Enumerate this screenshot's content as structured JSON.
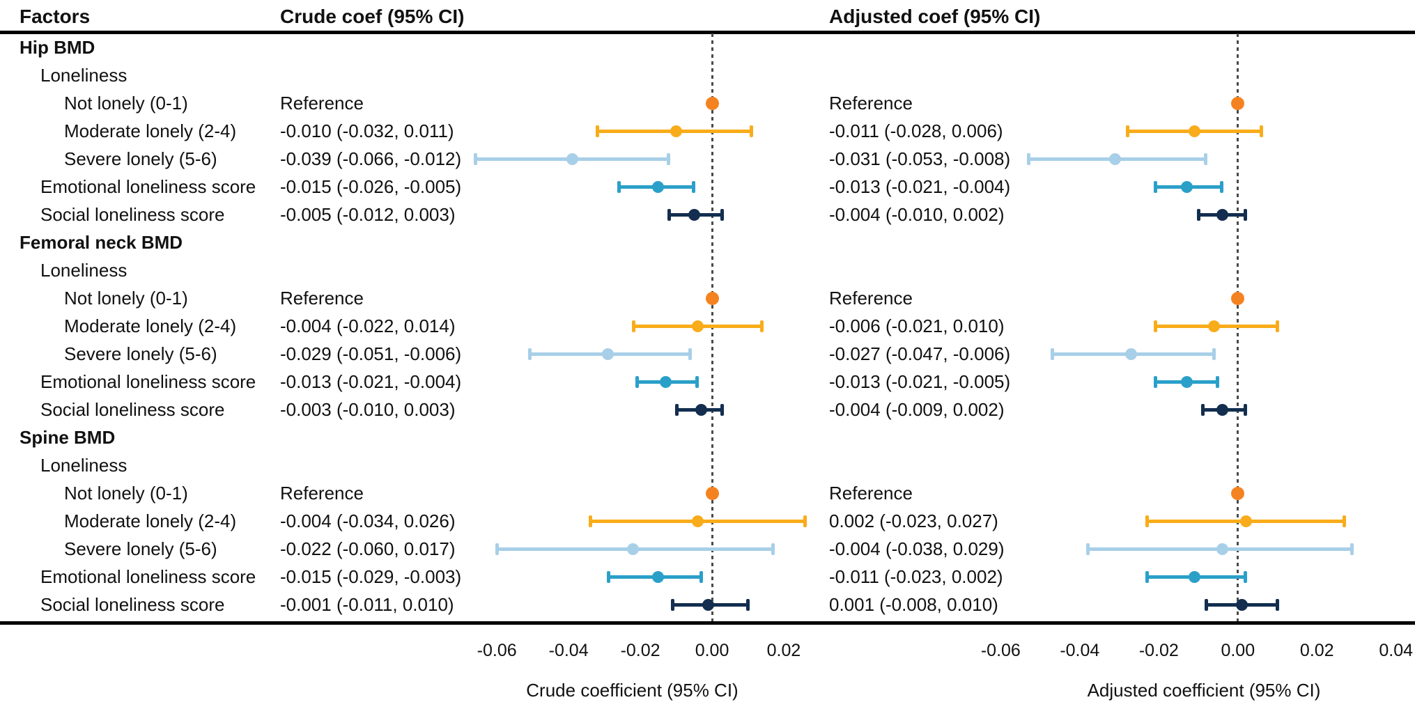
{
  "header": {
    "factors": "Factors",
    "crude": "Crude coef (95% CI)",
    "adjusted": "Adjusted coef (95% CI)"
  },
  "colors": {
    "reference": "#F58220",
    "moderate": "#F9AC1B",
    "severe": "#A8CFE8",
    "emotional": "#2AA0C9",
    "social": "#132E4F",
    "zero_line": "#4a4a4a",
    "rule": "#000000",
    "text": "#111111"
  },
  "chart_data": {
    "type": "forest",
    "panels": [
      "crude",
      "adjusted"
    ],
    "axes": {
      "crude": {
        "label": "Crude coefficient (95% CI)",
        "ticks": [
          -0.06,
          -0.04,
          -0.02,
          0,
          0.02
        ],
        "tick_labels": [
          "-0.06",
          "-0.04",
          "-0.02",
          "0.00",
          "0.02"
        ],
        "range": [
          -0.0713,
          0.0268
        ],
        "zero_reference_line": true
      },
      "adjusted": {
        "label": "Adjusted coefficient (95% CI)",
        "ticks": [
          -0.06,
          -0.04,
          -0.02,
          0,
          0.02,
          0.04
        ],
        "tick_labels": [
          "-0.06",
          "-0.04",
          "-0.02",
          "0.00",
          "0.02",
          "0.04"
        ],
        "range": [
          -0.062,
          0.0448
        ],
        "zero_reference_line": true
      }
    },
    "rows": [
      {
        "label": "Hip BMD",
        "indent": 0,
        "style": "group"
      },
      {
        "label": "Loneliness",
        "indent": 1,
        "style": "sub"
      },
      {
        "label": "Not lonely (0-1)",
        "indent": 2,
        "style": "item",
        "color": "reference",
        "crude": {
          "text": "Reference",
          "reference": true,
          "est": 0
        },
        "adjusted": {
          "text": "Reference",
          "reference": true,
          "est": 0
        }
      },
      {
        "label": "Moderate lonely (2-4)",
        "indent": 2,
        "style": "item",
        "color": "moderate",
        "crude": {
          "text": "-0.010 (-0.032, 0.011)",
          "est": -0.01,
          "lo": -0.032,
          "hi": 0.011
        },
        "adjusted": {
          "text": "-0.011 (-0.028, 0.006)",
          "est": -0.011,
          "lo": -0.028,
          "hi": 0.006
        }
      },
      {
        "label": "Severe lonely (5-6)",
        "indent": 2,
        "style": "item",
        "color": "severe",
        "crude": {
          "text": "-0.039 (-0.066, -0.012)",
          "est": -0.039,
          "lo": -0.066,
          "hi": -0.012
        },
        "adjusted": {
          "text": "-0.031 (-0.053, -0.008)",
          "est": -0.031,
          "lo": -0.053,
          "hi": -0.008
        }
      },
      {
        "label": "Emotional loneliness score",
        "indent": 1,
        "style": "item",
        "color": "emotional",
        "crude": {
          "text": "-0.015 (-0.026, -0.005)",
          "est": -0.015,
          "lo": -0.026,
          "hi": -0.005
        },
        "adjusted": {
          "text": "-0.013 (-0.021, -0.004)",
          "est": -0.013,
          "lo": -0.021,
          "hi": -0.004
        }
      },
      {
        "label": "Social loneliness score",
        "indent": 1,
        "style": "item",
        "color": "social",
        "crude": {
          "text": "-0.005 (-0.012, 0.003)",
          "est": -0.005,
          "lo": -0.012,
          "hi": 0.003
        },
        "adjusted": {
          "text": "-0.004 (-0.010, 0.002)",
          "est": -0.004,
          "lo": -0.01,
          "hi": 0.002
        }
      },
      {
        "label": "Femoral neck BMD",
        "indent": 0,
        "style": "group"
      },
      {
        "label": "Loneliness",
        "indent": 1,
        "style": "sub"
      },
      {
        "label": "Not lonely (0-1)",
        "indent": 2,
        "style": "item",
        "color": "reference",
        "crude": {
          "text": "Reference",
          "reference": true,
          "est": 0
        },
        "adjusted": {
          "text": "Reference",
          "reference": true,
          "est": 0
        }
      },
      {
        "label": "Moderate lonely (2-4)",
        "indent": 2,
        "style": "item",
        "color": "moderate",
        "crude": {
          "text": "-0.004 (-0.022, 0.014)",
          "est": -0.004,
          "lo": -0.022,
          "hi": 0.014
        },
        "adjusted": {
          "text": "-0.006 (-0.021, 0.010)",
          "est": -0.006,
          "lo": -0.021,
          "hi": 0.01
        }
      },
      {
        "label": "Severe lonely (5-6)",
        "indent": 2,
        "style": "item",
        "color": "severe",
        "crude": {
          "text": "-0.029 (-0.051, -0.006)",
          "est": -0.029,
          "lo": -0.051,
          "hi": -0.006
        },
        "adjusted": {
          "text": "-0.027 (-0.047, -0.006)",
          "est": -0.027,
          "lo": -0.047,
          "hi": -0.006
        }
      },
      {
        "label": "Emotional loneliness score",
        "indent": 1,
        "style": "item",
        "color": "emotional",
        "crude": {
          "text": "-0.013 (-0.021, -0.004)",
          "est": -0.013,
          "lo": -0.021,
          "hi": -0.004
        },
        "adjusted": {
          "text": "-0.013 (-0.021, -0.005)",
          "est": -0.013,
          "lo": -0.021,
          "hi": -0.005
        }
      },
      {
        "label": "Social loneliness score",
        "indent": 1,
        "style": "item",
        "color": "social",
        "crude": {
          "text": "-0.003 (-0.010, 0.003)",
          "est": -0.003,
          "lo": -0.01,
          "hi": 0.003
        },
        "adjusted": {
          "text": "-0.004 (-0.009, 0.002)",
          "est": -0.004,
          "lo": -0.009,
          "hi": 0.002
        }
      },
      {
        "label": "Spine BMD",
        "indent": 0,
        "style": "group"
      },
      {
        "label": "Loneliness",
        "indent": 1,
        "style": "sub"
      },
      {
        "label": "Not lonely (0-1)",
        "indent": 2,
        "style": "item",
        "color": "reference",
        "crude": {
          "text": "Reference",
          "reference": true,
          "est": 0
        },
        "adjusted": {
          "text": "Reference",
          "reference": true,
          "est": 0
        }
      },
      {
        "label": "Moderate lonely (2-4)",
        "indent": 2,
        "style": "item",
        "color": "moderate",
        "crude": {
          "text": "-0.004 (-0.034, 0.026)",
          "est": -0.004,
          "lo": -0.034,
          "hi": 0.026
        },
        "adjusted": {
          "text": "0.002 (-0.023, 0.027)",
          "est": 0.002,
          "lo": -0.023,
          "hi": 0.027
        }
      },
      {
        "label": "Severe lonely (5-6)",
        "indent": 2,
        "style": "item",
        "color": "severe",
        "crude": {
          "text": "-0.022 (-0.060, 0.017)",
          "est": -0.022,
          "lo": -0.06,
          "hi": 0.017
        },
        "adjusted": {
          "text": "-0.004 (-0.038, 0.029)",
          "est": -0.004,
          "lo": -0.038,
          "hi": 0.029
        }
      },
      {
        "label": "Emotional loneliness score",
        "indent": 1,
        "style": "item",
        "color": "emotional",
        "crude": {
          "text": "-0.015 (-0.029, -0.003)",
          "est": -0.015,
          "lo": -0.029,
          "hi": -0.003
        },
        "adjusted": {
          "text": "-0.011 (-0.023, 0.002)",
          "est": -0.011,
          "lo": -0.023,
          "hi": 0.002
        }
      },
      {
        "label": "Social loneliness score",
        "indent": 1,
        "style": "item",
        "color": "social",
        "crude": {
          "text": "-0.001 (-0.011, 0.010)",
          "est": -0.001,
          "lo": -0.011,
          "hi": 0.01
        },
        "adjusted": {
          "text": "0.001 (-0.008, 0.010)",
          "est": 0.001,
          "lo": -0.008,
          "hi": 0.01
        }
      }
    ]
  }
}
